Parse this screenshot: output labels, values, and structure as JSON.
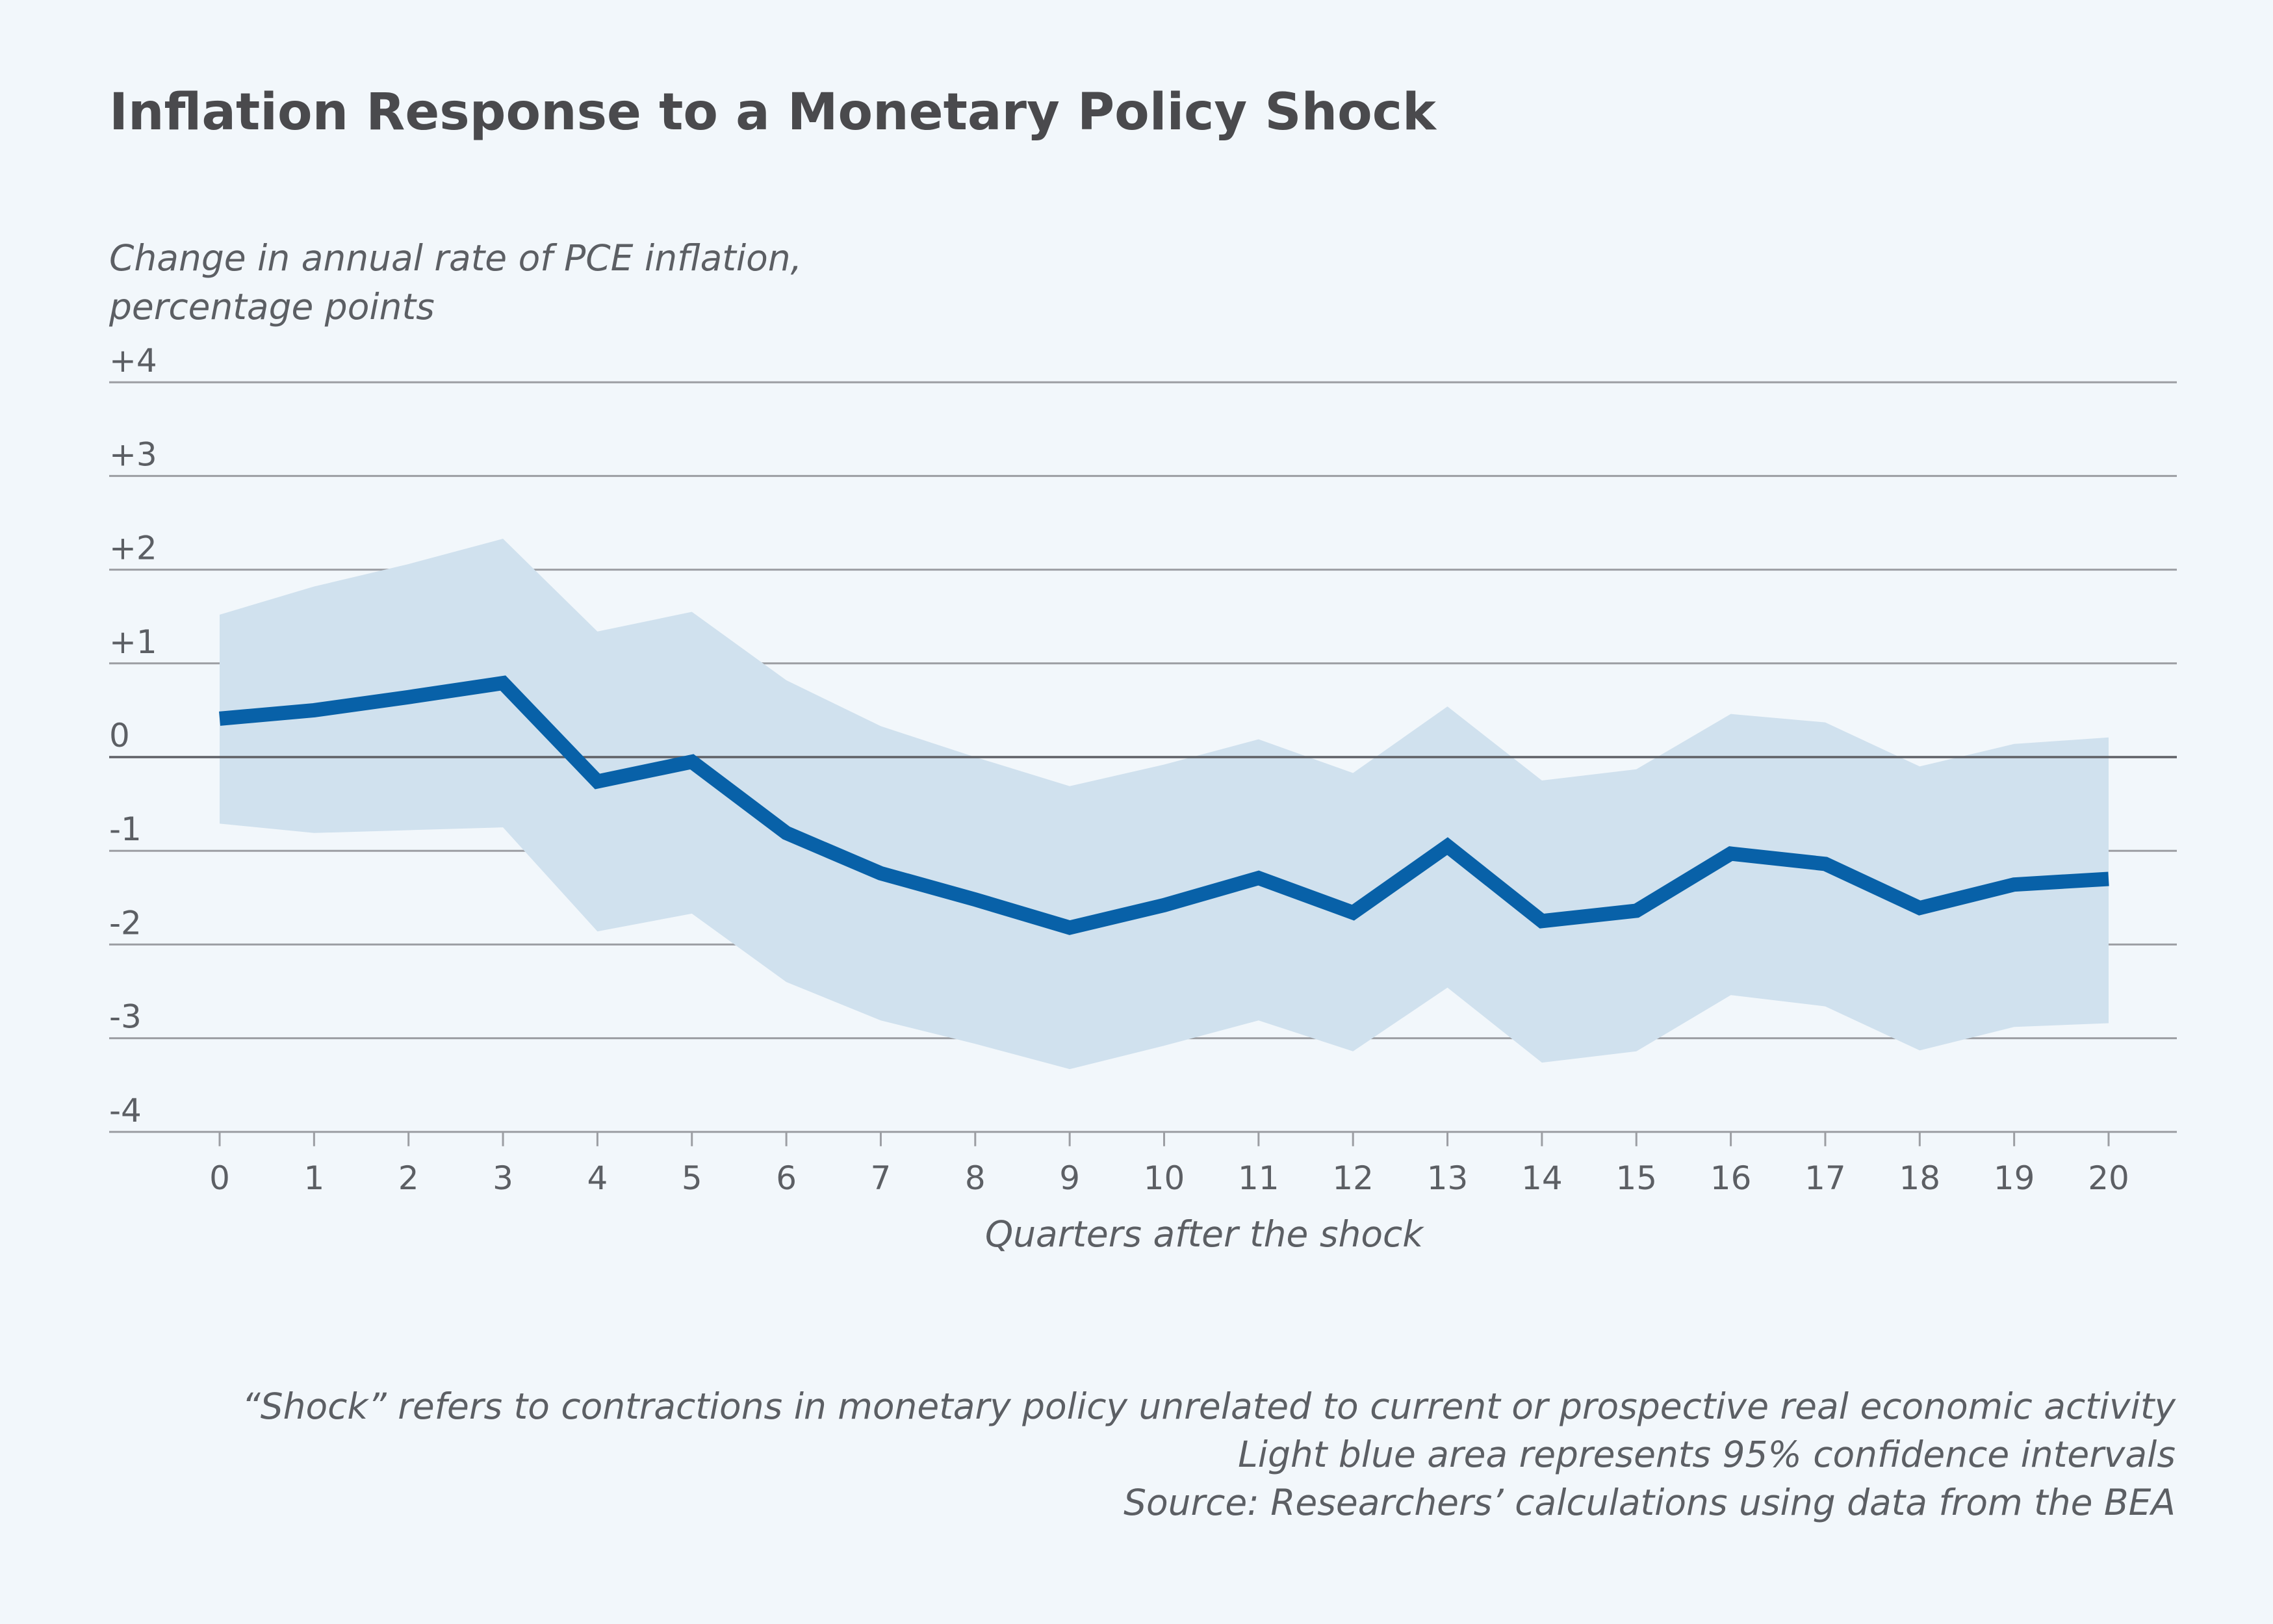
{
  "chart_data": {
    "type": "line",
    "title": "Inflation Response to a Monetary Policy Shock",
    "ylabel_lines": [
      "Change in annual rate of PCE inflation,",
      "percentage points"
    ],
    "xlabel": "Quarters after the shock",
    "ylim": [
      -4,
      4
    ],
    "yticks": [
      4,
      3,
      2,
      1,
      0,
      -1,
      -2,
      -3,
      -4
    ],
    "ytick_labels": [
      "+4",
      "+3",
      "+2",
      "+1",
      "0",
      "-1",
      "-2",
      "-3",
      "-4"
    ],
    "x": [
      0,
      1,
      2,
      3,
      4,
      5,
      6,
      7,
      8,
      9,
      10,
      11,
      12,
      13,
      14,
      15,
      16,
      17,
      18,
      19,
      20
    ],
    "xtick_labels": [
      "0",
      "1",
      "2",
      "3",
      "4",
      "5",
      "6",
      "7",
      "8",
      "9",
      "10",
      "11",
      "12",
      "13",
      "14",
      "15",
      "16",
      "17",
      "18",
      "19",
      "20"
    ],
    "series": [
      {
        "values": [
          0.41,
          0.5,
          0.64,
          0.79,
          -0.26,
          -0.05,
          -0.81,
          -1.24,
          -1.52,
          -1.82,
          -1.58,
          -1.29,
          -1.66,
          -0.95,
          -1.75,
          -1.64,
          -1.03,
          -1.14,
          -1.61,
          -1.36,
          -1.3
        ],
        "color": "#0861a8"
      }
    ],
    "band": {
      "upper": [
        1.52,
        1.82,
        2.06,
        2.33,
        1.34,
        1.55,
        0.82,
        0.33,
        0.0,
        -0.31,
        -0.08,
        0.19,
        -0.17,
        0.54,
        -0.25,
        -0.13,
        0.46,
        0.37,
        -0.1,
        0.14,
        0.21
      ],
      "lower": [
        -0.71,
        -0.81,
        -0.78,
        -0.75,
        -1.86,
        -1.67,
        -2.4,
        -2.81,
        -3.06,
        -3.33,
        -3.08,
        -2.81,
        -3.14,
        -2.46,
        -3.26,
        -3.14,
        -2.54,
        -2.66,
        -3.13,
        -2.88,
        -2.84
      ],
      "color": "#d0e1ee"
    },
    "grid": true,
    "legend": "none"
  },
  "notes": [
    "“Shock” refers to contractions in monetary policy unrelated to current or prospective real economic activity",
    "Light blue area represents 95% confidence intervals",
    "Source: Researchers’ calculations using data from the BEA"
  ],
  "colors": {
    "background": "#f2f7fb",
    "gridline": "#9c9ea3",
    "zeroline": "#5f6166"
  }
}
